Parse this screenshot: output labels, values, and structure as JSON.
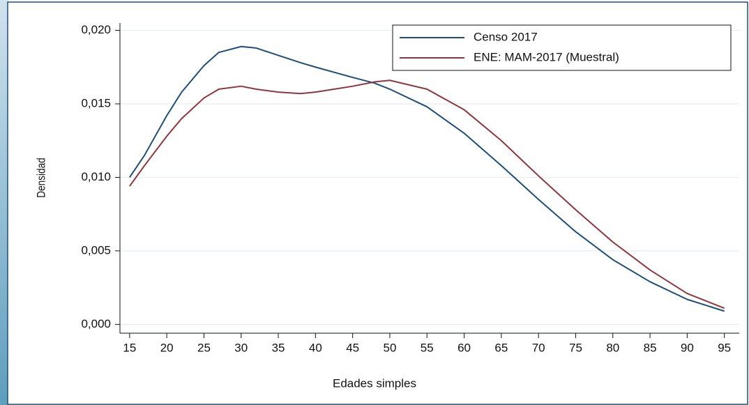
{
  "chart_data": {
    "type": "line",
    "x_label": "Edades simples",
    "y_label": "Densidad",
    "x": [
      15,
      17,
      20,
      22,
      25,
      27,
      30,
      32,
      35,
      38,
      40,
      45,
      48,
      50,
      55,
      60,
      65,
      70,
      75,
      80,
      85,
      90,
      95
    ],
    "series": [
      {
        "name": "Censo 2017",
        "color": "#1d4e78",
        "values": [
          0.01,
          0.0115,
          0.0142,
          0.0158,
          0.0176,
          0.0185,
          0.0189,
          0.0188,
          0.0183,
          0.0178,
          0.0175,
          0.0168,
          0.0164,
          0.016,
          0.0148,
          0.013,
          0.0108,
          0.0085,
          0.0063,
          0.0044,
          0.0029,
          0.0017,
          0.0009
        ]
      },
      {
        "name": "ENE: MAM-2017 (Muestral)",
        "color": "#90353b",
        "values": [
          0.0094,
          0.0108,
          0.0128,
          0.014,
          0.0154,
          0.016,
          0.0162,
          0.016,
          0.0158,
          0.0157,
          0.0158,
          0.0162,
          0.0165,
          0.0166,
          0.016,
          0.0146,
          0.0125,
          0.0101,
          0.0078,
          0.0056,
          0.0037,
          0.0021,
          0.0011
        ]
      }
    ],
    "xlim": [
      13.7,
      97
    ],
    "ylim": [
      -0.0006,
      0.0205
    ],
    "xticks": [
      15,
      20,
      25,
      30,
      35,
      40,
      45,
      50,
      55,
      60,
      65,
      70,
      75,
      80,
      85,
      90,
      95
    ],
    "yticks": [
      {
        "value": 0,
        "label": "0,000"
      },
      {
        "value": 0.005,
        "label": "0,005"
      },
      {
        "value": 0.01,
        "label": "0,010"
      },
      {
        "value": 0.015,
        "label": "0,015"
      },
      {
        "value": 0.02,
        "label": "0,020"
      }
    ],
    "grid": true,
    "legend": "top-right"
  }
}
